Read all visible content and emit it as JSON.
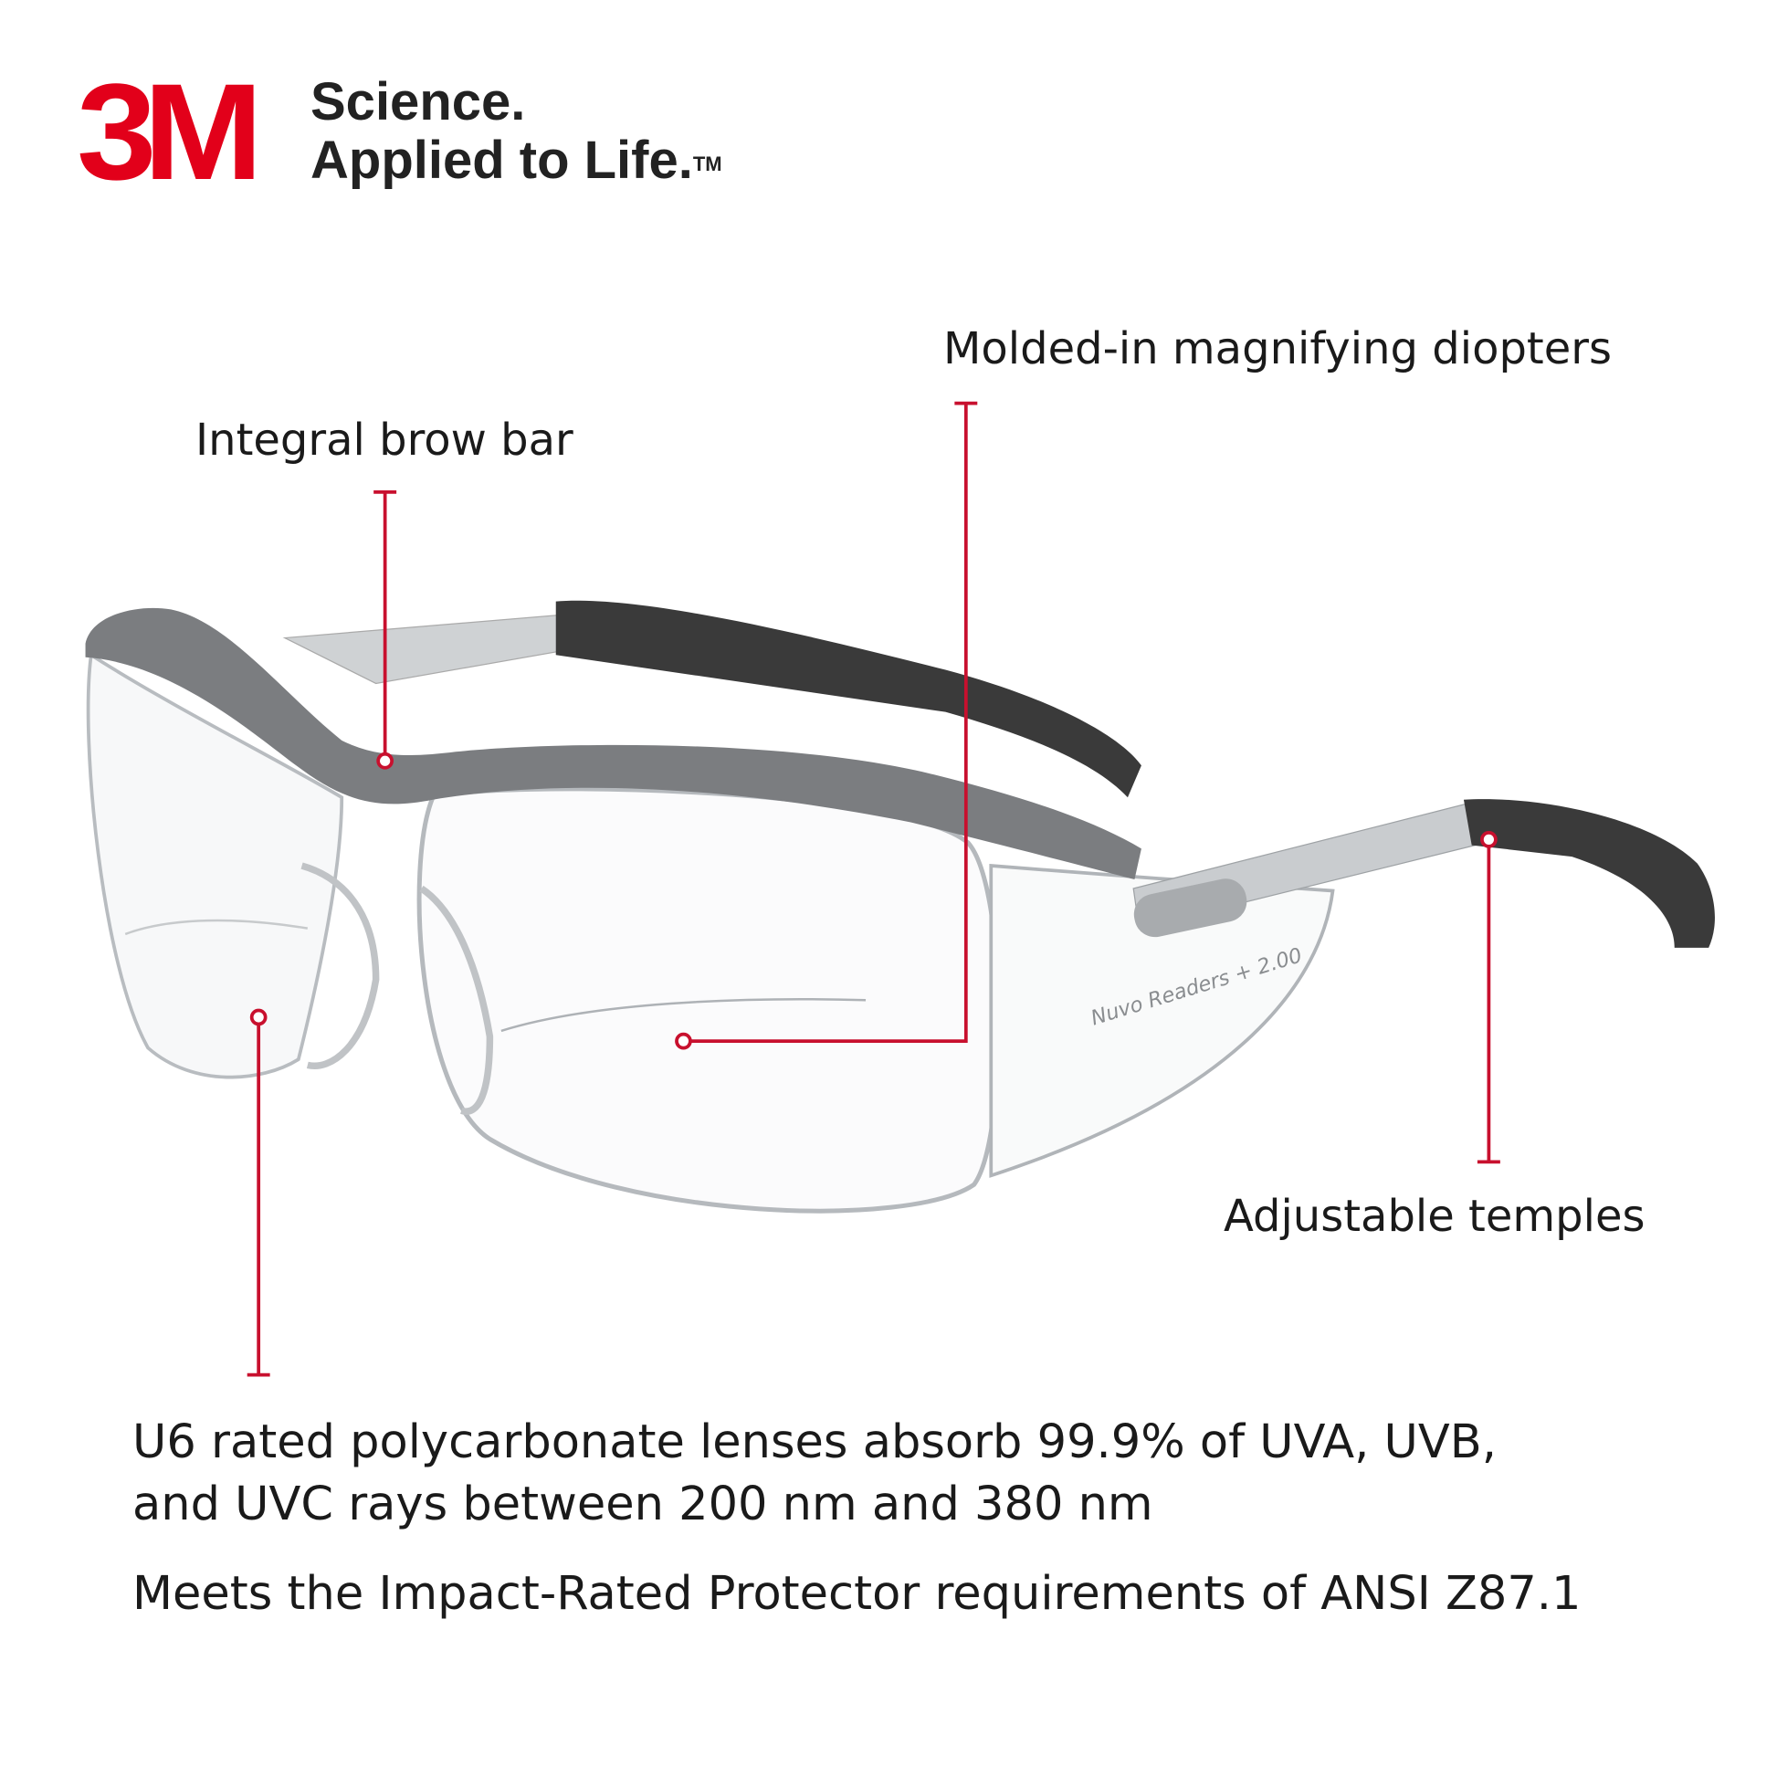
{
  "brand": {
    "logo": "3M",
    "tagline_line1": "Science.",
    "tagline_line2": "Applied to Life.",
    "trademark": "TM",
    "brand_color": "#E2001A"
  },
  "product": {
    "engraving": "Nuvo Readers + 2.00"
  },
  "callouts": {
    "diopters": "Molded-in magnifying diopters",
    "brow_bar": "Integral brow bar",
    "temples": "Adjustable temples",
    "line_color": "#C8102E"
  },
  "features": {
    "uv_line1": "U6 rated polycarbonate lenses absorb 99.9% of UVA, UVB,",
    "uv_line2": "and UVC rays between 200 nm and 380 nm",
    "ansi": "Meets the Impact-Rated Protector requirements of ANSI Z87.1"
  }
}
